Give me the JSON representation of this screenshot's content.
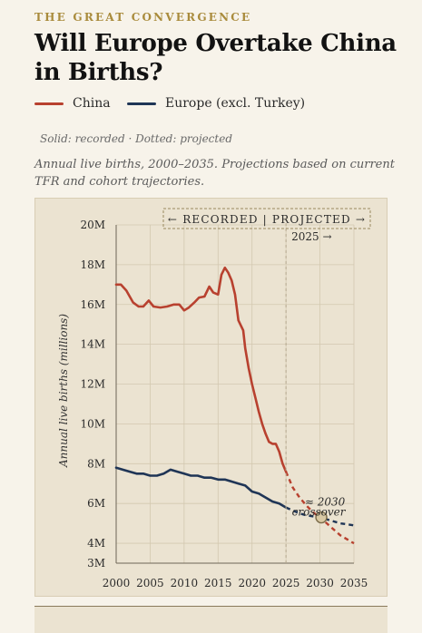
{
  "header": {
    "kicker": "THE GREAT CONVERGENCE",
    "title": "Will Europe Overtake China in Births?"
  },
  "legend": [
    {
      "label": "China",
      "color": "#b8412f"
    },
    {
      "label": "Europe (excl. Turkey)",
      "color": "#1f3556"
    }
  ],
  "note": "Solid: recorded · Dotted: projected",
  "subtitle": "Annual live births, 2000–2035. Projections based on current TFR and cohort trajectories.",
  "chart_data": {
    "type": "line",
    "ylabel": "Annual live births (millions)",
    "xlim": [
      2000,
      2035
    ],
    "ylim": [
      3,
      20
    ],
    "x_ticks": [
      "2000",
      "2005",
      "2010",
      "2015",
      "2020",
      "2025",
      "2030",
      "2035"
    ],
    "y_ticks": [
      "3M",
      "4M",
      "6M",
      "8M",
      "10M",
      "12M",
      "14M",
      "16M",
      "18M",
      "20M"
    ],
    "grid": true,
    "annotations": {
      "phase_banner": "← RECORDED | PROJECTED →",
      "divider_label": "2025 →",
      "divider_year": 2025,
      "crossover_label": "≈ 2030",
      "crossover_sub": "crossover",
      "crossover_point": [
        2030.2,
        5.3
      ]
    },
    "series": [
      {
        "name": "China",
        "color": "#b8412f",
        "recorded": [
          [
            2000,
            17.0
          ],
          [
            2000.7,
            17.0
          ],
          [
            2001.5,
            16.7
          ],
          [
            2002.5,
            16.1
          ],
          [
            2003.3,
            15.9
          ],
          [
            2004,
            15.9
          ],
          [
            2004.8,
            16.2
          ],
          [
            2005.5,
            15.9
          ],
          [
            2006.5,
            15.85
          ],
          [
            2007.5,
            15.9
          ],
          [
            2008.5,
            16.0
          ],
          [
            2009.3,
            16.0
          ],
          [
            2010,
            15.7
          ],
          [
            2010.7,
            15.85
          ],
          [
            2011.5,
            16.1
          ],
          [
            2012.2,
            16.35
          ],
          [
            2013,
            16.4
          ],
          [
            2013.7,
            16.9
          ],
          [
            2014.3,
            16.6
          ],
          [
            2015,
            16.5
          ],
          [
            2015.5,
            17.5
          ],
          [
            2016,
            17.85
          ],
          [
            2016.5,
            17.6
          ],
          [
            2017,
            17.2
          ],
          [
            2017.5,
            16.5
          ],
          [
            2018,
            15.2
          ],
          [
            2018.7,
            14.7
          ],
          [
            2019,
            13.8
          ],
          [
            2019.5,
            12.8
          ],
          [
            2020,
            12.0
          ],
          [
            2020.5,
            11.3
          ],
          [
            2021,
            10.6
          ],
          [
            2021.5,
            10.0
          ],
          [
            2022,
            9.5
          ],
          [
            2022.5,
            9.1
          ],
          [
            2023,
            9.0
          ],
          [
            2023.5,
            9.0
          ],
          [
            2024,
            8.6
          ],
          [
            2024.5,
            8.0
          ],
          [
            2025,
            7.6
          ]
        ],
        "projected": [
          [
            2025,
            7.6
          ],
          [
            2026,
            6.8
          ],
          [
            2027,
            6.3
          ],
          [
            2028,
            5.9
          ],
          [
            2029,
            5.55
          ],
          [
            2030,
            5.3
          ],
          [
            2031,
            5.0
          ],
          [
            2032,
            4.7
          ],
          [
            2033,
            4.4
          ],
          [
            2034,
            4.2
          ],
          [
            2035,
            4.0
          ]
        ]
      },
      {
        "name": "Europe (excl. Turkey)",
        "color": "#1f3556",
        "recorded": [
          [
            2000,
            7.8
          ],
          [
            2002,
            7.6
          ],
          [
            2003,
            7.5
          ],
          [
            2004,
            7.5
          ],
          [
            2005,
            7.4
          ],
          [
            2006,
            7.4
          ],
          [
            2007,
            7.5
          ],
          [
            2008,
            7.7
          ],
          [
            2009,
            7.6
          ],
          [
            2010,
            7.5
          ],
          [
            2011,
            7.4
          ],
          [
            2012,
            7.4
          ],
          [
            2013,
            7.3
          ],
          [
            2014,
            7.3
          ],
          [
            2015,
            7.2
          ],
          [
            2016,
            7.2
          ],
          [
            2017,
            7.1
          ],
          [
            2018,
            7.0
          ],
          [
            2019,
            6.9
          ],
          [
            2020,
            6.6
          ],
          [
            2021,
            6.5
          ],
          [
            2022,
            6.3
          ],
          [
            2023,
            6.1
          ],
          [
            2024,
            6.0
          ],
          [
            2025,
            5.8
          ]
        ],
        "projected": [
          [
            2025,
            5.8
          ],
          [
            2026,
            5.65
          ],
          [
            2027,
            5.5
          ],
          [
            2028,
            5.4
          ],
          [
            2029,
            5.35
          ],
          [
            2030,
            5.3
          ],
          [
            2031,
            5.2
          ],
          [
            2032,
            5.1
          ],
          [
            2033,
            5.0
          ],
          [
            2034,
            4.95
          ],
          [
            2035,
            4.9
          ]
        ]
      }
    ]
  }
}
